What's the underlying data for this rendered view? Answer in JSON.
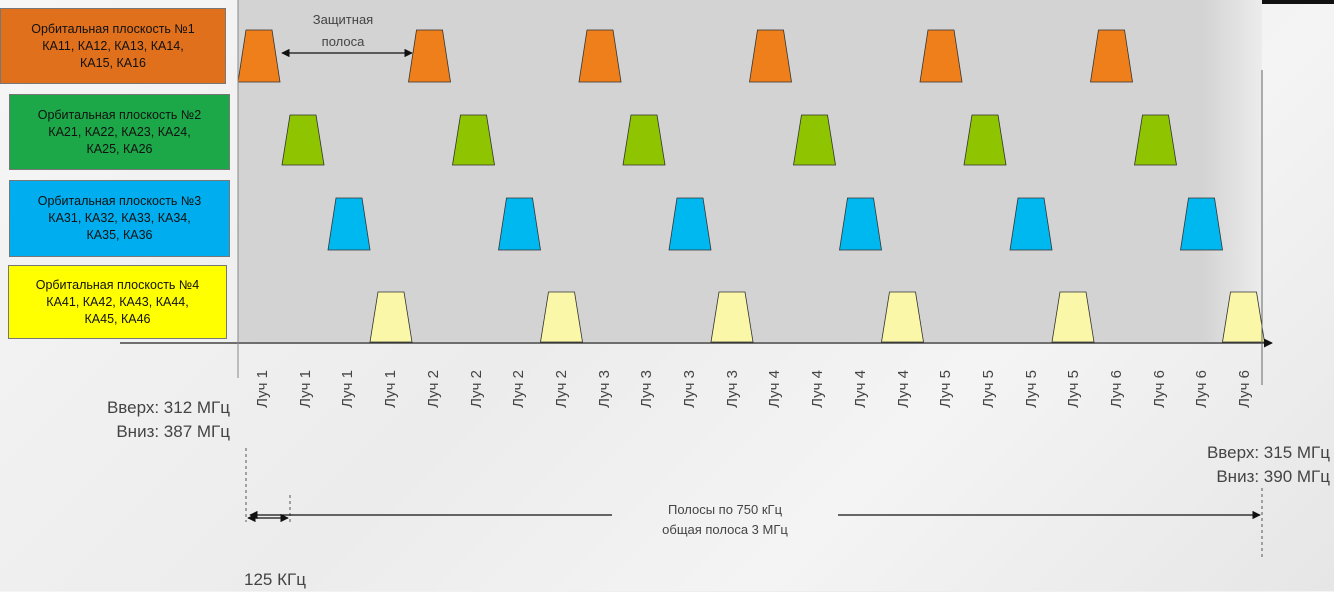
{
  "colors": {
    "plane1": "#ee7f1a",
    "plane2": "#8fc400",
    "plane3": "#00b8f0",
    "plane4": "#fbf7a8",
    "box1": "#e0701c",
    "box2": "#1ca849",
    "box3": "#00aeef",
    "box4": "#ffff00"
  },
  "planes": [
    {
      "title": "Орбитальная плоскость №1",
      "line2": "КА11, КА12, КА13, КА14,",
      "line3": "КА15, КА16"
    },
    {
      "title": "Орбитальная плоскость №2",
      "line2": "КА21, КА22, КА23, КА24,",
      "line3": "КА25, КА26"
    },
    {
      "title": "Орбитальная плоскость №3",
      "line2": "КА31, КА32, КА33, КА34,",
      "line3": "КА35, КА36"
    },
    {
      "title": "Орбитальная плоскость №4",
      "line2": "КА41, КА42, КА43, КА44,",
      "line3": "КА45, КА46"
    }
  ],
  "guard_band": {
    "line1": "Защитная",
    "line2": "полоса"
  },
  "beams": [
    "Луч 1",
    "Луч 1",
    "Луч 1",
    "Луч 1",
    "Луч 2",
    "Луч 2",
    "Луч 2",
    "Луч 2",
    "Луч 3",
    "Луч 3",
    "Луч 3",
    "Луч 3",
    "Луч 4",
    "Луч 4",
    "Луч 4",
    "Луч 4",
    "Луч 5",
    "Луч 5",
    "Луч 5",
    "Луч 5",
    "Луч 6",
    "Луч 6",
    "Луч 6",
    "Луч 6"
  ],
  "freq_left": {
    "up": "Вверх: 312 МГц",
    "down": "Вниз: 387 МГц"
  },
  "freq_right": {
    "up": "Вверх: 315 МГц",
    "down": "Вниз: 390 МГц"
  },
  "bandwidth": {
    "line1": "Полосы по 750 кГц",
    "line2": "общая полоса 3 МГц"
  },
  "step": "125 КГц"
}
